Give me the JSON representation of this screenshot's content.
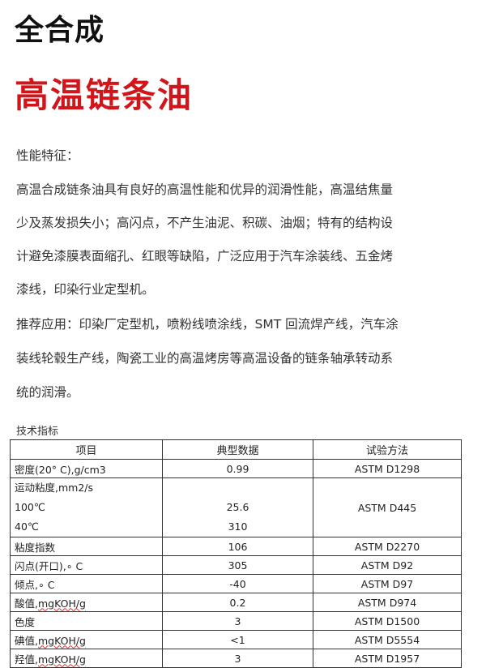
{
  "title": "全合成",
  "subtitle": "高温链条油",
  "features": {
    "heading": "性能特征：",
    "lines": [
      "高温合成链条油具有良好的高温性能和优异的润滑性能，高温结焦量",
      "少及蒸发损失小；高闪点，不产生油泥、积碳、油烟；特有的结构设",
      "计避免漆膜表面缩孔、红眼等缺陷，广泛应用于汽车涂装线、五金烤",
      "漆线，印染行业定型机。"
    ]
  },
  "applications": {
    "lines": [
      "推荐应用：印染厂定型机，喷粉线喷涂线，SMT 回流焊产线，汽车涂",
      "装线轮毂生产线，陶瓷工业的高温烤房等高温设备的链条轴承转动系",
      "统的润滑。"
    ]
  },
  "specs": {
    "heading": "技术指标",
    "columns": [
      "项目",
      "典型数据",
      "试验方法"
    ],
    "rows": [
      {
        "item": "密度(20° C),g/cm3",
        "value": "0.99",
        "method": "ASTM D1298"
      },
      {
        "item": "运动粘度,mm2/s",
        "sub": [
          {
            "label": "100℃",
            "value": "25.6"
          },
          {
            "label": "40℃",
            "value": "310"
          }
        ],
        "method": "ASTM D445"
      },
      {
        "item": "粘度指数",
        "value": "106",
        "method": "ASTM D2270"
      },
      {
        "item": "闪点(开口),∘ C",
        "value": "305",
        "method": "ASTM D92"
      },
      {
        "item": "倾点,∘ C",
        "value": "-40",
        "method": "ASTM D97"
      },
      {
        "item": "酸值,",
        "unit": "mgKOH/g",
        "value": "0.2",
        "method": "ASTM D974"
      },
      {
        "item": "色度",
        "value": "3",
        "method": "ASTM D1500"
      },
      {
        "item": "碘值,",
        "unit": "mgKOH/g",
        "value": "<1",
        "method": "ASTM D5554"
      },
      {
        "item": "羟值,",
        "unit": "mgKOH/g",
        "value": "3",
        "method": "ASTM D1957"
      }
    ]
  }
}
